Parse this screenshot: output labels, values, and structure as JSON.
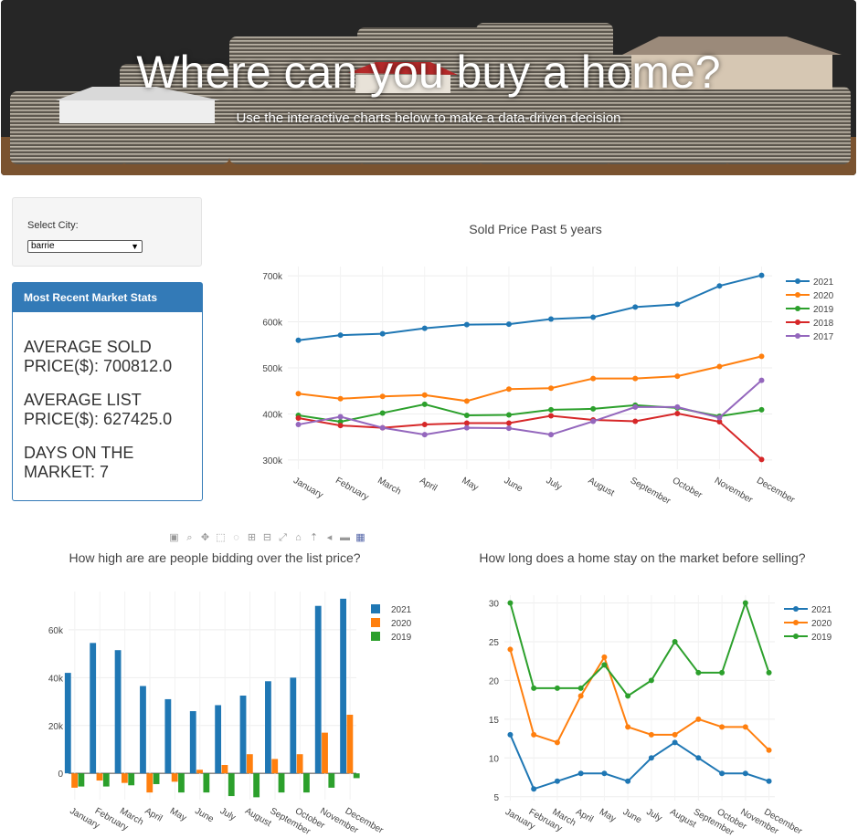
{
  "hero": {
    "title": "Where can you buy a home?",
    "subtitle": "Use the interactive charts below to make a data-driven decision"
  },
  "city": {
    "label": "Select City:",
    "selected": "barrie"
  },
  "stats": {
    "heading": "Most Recent Market Stats",
    "avg_sold": "AVERAGE SOLD PRICE($): 700812.0",
    "avg_list": "AVERAGE LIST PRICE($): 627425.0",
    "dom": "DAYS ON THE MARKET: 7"
  },
  "toolbar": [
    "camera-icon",
    "zoom-icon",
    "pan-icon",
    "box-select-icon",
    "lasso-icon",
    "zoom-in-icon",
    "zoom-out-icon",
    "autoscale-icon",
    "reset-axes-icon",
    "spike-icon",
    "hover-closest-icon",
    "hover-compare-icon",
    "plotly-logo-icon"
  ],
  "colors": {
    "2021": "#1f77b4",
    "2020": "#ff7f0e",
    "2019": "#2ca02c",
    "2018": "#d62728",
    "2017": "#9467bd"
  },
  "chart_data": [
    {
      "type": "line",
      "title": "Sold Price Past 5 years",
      "categories": [
        "January",
        "February",
        "March",
        "April",
        "May",
        "June",
        "July",
        "August",
        "September",
        "October",
        "November",
        "December"
      ],
      "ylim": [
        280000,
        720000
      ],
      "yticks": [
        {
          "v": 300000,
          "l": "300k"
        },
        {
          "v": 400000,
          "l": "400k"
        },
        {
          "v": 500000,
          "l": "500k"
        },
        {
          "v": 600000,
          "l": "600k"
        },
        {
          "v": 700000,
          "l": "700k"
        }
      ],
      "legend": "top-right",
      "series": [
        {
          "name": "2021",
          "values": [
            560000,
            571000,
            574000,
            586000,
            594000,
            595000,
            606000,
            610000,
            632000,
            638000,
            678000,
            701000
          ]
        },
        {
          "name": "2020",
          "values": [
            444000,
            433000,
            438000,
            441000,
            428000,
            454000,
            456000,
            477000,
            477000,
            482000,
            503000,
            525000
          ]
        },
        {
          "name": "2019",
          "values": [
            397000,
            383000,
            402000,
            421000,
            397000,
            398000,
            409000,
            411000,
            419000,
            413000,
            395000,
            409000
          ]
        },
        {
          "name": "2018",
          "values": [
            391000,
            375000,
            370000,
            377000,
            380000,
            380000,
            396000,
            387000,
            384000,
            401000,
            383000,
            301000
          ]
        },
        {
          "name": "2017",
          "values": [
            377000,
            394000,
            370000,
            355000,
            370000,
            369000,
            355000,
            384000,
            415000,
            415000,
            392000,
            473000
          ]
        }
      ]
    },
    {
      "type": "bar",
      "title": "How high are are people bidding over the list price?",
      "categories": [
        "January",
        "February",
        "March",
        "April",
        "May",
        "June",
        "July",
        "August",
        "September",
        "October",
        "November",
        "December"
      ],
      "ylim": [
        -11000,
        76000
      ],
      "yticks": [
        {
          "v": 0,
          "l": "0"
        },
        {
          "v": 20000,
          "l": "20k"
        },
        {
          "v": 40000,
          "l": "40k"
        },
        {
          "v": 60000,
          "l": "60k"
        }
      ],
      "legend": "top-right",
      "series": [
        {
          "name": "2021",
          "values": [
            42000,
            54500,
            51500,
            36500,
            31000,
            26000,
            28500,
            32500,
            38500,
            40000,
            70000,
            73000
          ]
        },
        {
          "name": "2020",
          "values": [
            -6000,
            -3000,
            -4000,
            -8000,
            -3500,
            1500,
            3500,
            8000,
            6000,
            8000,
            17000,
            24500
          ]
        },
        {
          "name": "2019",
          "values": [
            -5500,
            -5500,
            -5000,
            -4500,
            -8000,
            -8000,
            -9500,
            -10000,
            -8000,
            -8000,
            -6000,
            -2000
          ]
        }
      ]
    },
    {
      "type": "line",
      "title": "How long does a home stay on the market before selling?",
      "categories": [
        "January",
        "February",
        "March",
        "April",
        "May",
        "June",
        "July",
        "August",
        "September",
        "October",
        "November",
        "December"
      ],
      "ylim": [
        4.5,
        31
      ],
      "yticks": [
        {
          "v": 5,
          "l": "5"
        },
        {
          "v": 10,
          "l": "10"
        },
        {
          "v": 15,
          "l": "15"
        },
        {
          "v": 20,
          "l": "20"
        },
        {
          "v": 25,
          "l": "25"
        },
        {
          "v": 30,
          "l": "30"
        }
      ],
      "legend": "top-right",
      "series": [
        {
          "name": "2021",
          "values": [
            13,
            6,
            7,
            8,
            8,
            7,
            10,
            12,
            10,
            8,
            8,
            7
          ]
        },
        {
          "name": "2020",
          "values": [
            24,
            13,
            12,
            18,
            23,
            14,
            13,
            13,
            15,
            14,
            14,
            11
          ]
        },
        {
          "name": "2019",
          "values": [
            30,
            19,
            19,
            19,
            22,
            18,
            20,
            25,
            21,
            21,
            30,
            21
          ]
        }
      ]
    }
  ]
}
